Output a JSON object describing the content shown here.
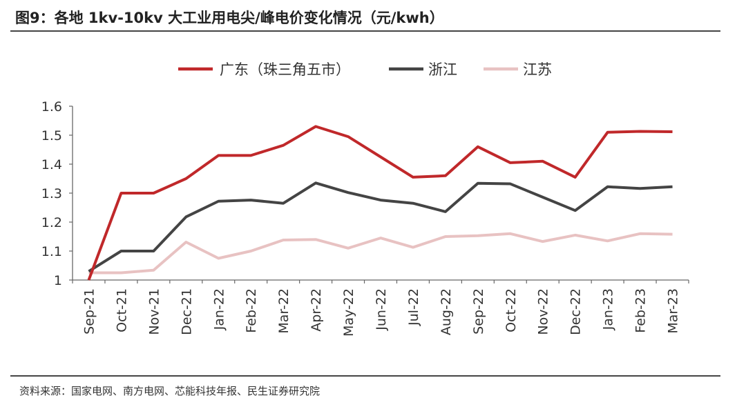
{
  "title": "图9：各地 1kv-10kv 大工业用电尖/峰电价变化情况（元/kwh）",
  "source": "资料来源：国家电网、南方电网、芯能科技年报、民生证券研究院",
  "chart_data": {
    "type": "line",
    "title": "图9：各地 1kv-10kv 大工业用电尖/峰电价变化情况（元/kwh）",
    "xlabel": "",
    "ylabel": "",
    "ylim": [
      1,
      1.6
    ],
    "yticks": [
      "1",
      "1.1",
      "1.2",
      "1.3",
      "1.4",
      "1.5",
      "1.6"
    ],
    "grid": false,
    "legend_position": "top-center",
    "categories": [
      "Sep-21",
      "Oct-21",
      "Nov-21",
      "Dec-21",
      "Jan-22",
      "Feb-22",
      "Mar-22",
      "Apr-22",
      "May-22",
      "Jun-22",
      "Jul-22",
      "Aug-22",
      "Sep-22",
      "Oct-22",
      "Nov-22",
      "Dec-22",
      "Jan-23",
      "Feb-23",
      "Mar-23"
    ],
    "series": [
      {
        "name": "广东（珠三角五市）",
        "color": "#c0282a",
        "values": [
          1.0,
          1.3,
          1.3,
          1.35,
          1.43,
          1.43,
          1.465,
          1.53,
          1.495,
          1.425,
          1.355,
          1.36,
          1.46,
          1.405,
          1.41,
          1.355,
          1.51,
          1.513,
          1.512
        ]
      },
      {
        "name": "浙江",
        "color": "#444444",
        "values": [
          1.03,
          1.1,
          1.1,
          1.218,
          1.272,
          1.276,
          1.265,
          1.335,
          1.302,
          1.276,
          1.265,
          1.236,
          1.334,
          1.332,
          1.286,
          1.24,
          1.322,
          1.316,
          1.322
        ]
      },
      {
        "name": "江苏",
        "color": "#e8c2c2",
        "values": [
          1.025,
          1.025,
          1.034,
          1.131,
          1.075,
          1.1,
          1.138,
          1.14,
          1.11,
          1.145,
          1.113,
          1.15,
          1.153,
          1.16,
          1.133,
          1.155,
          1.135,
          1.16,
          1.158
        ]
      }
    ]
  }
}
